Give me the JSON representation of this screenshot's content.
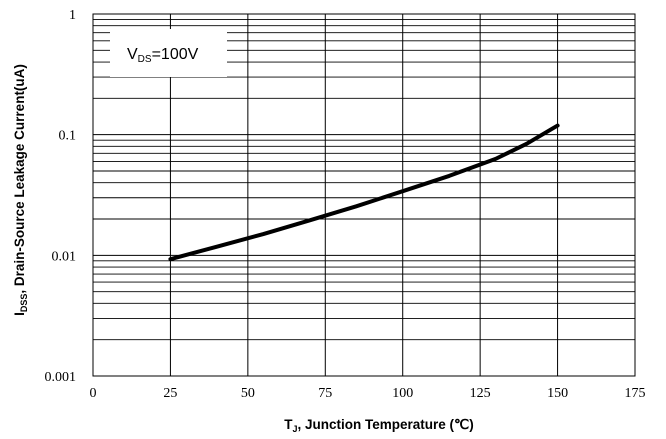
{
  "chart_data": {
    "type": "line",
    "y_scale": "log",
    "xlim": [
      0,
      175
    ],
    "ylim": [
      0.001,
      1
    ],
    "x_ticks": [
      0,
      25,
      50,
      75,
      100,
      125,
      150,
      175
    ],
    "x_tick_labels": [
      "0",
      "25",
      "50",
      "75",
      "100",
      "125",
      "150",
      "175"
    ],
    "y_ticks": [
      0.001,
      0.01,
      0.1,
      1
    ],
    "y_tick_labels": [
      "0.001",
      "0.01",
      "0.1",
      "1"
    ],
    "xlabel": {
      "main": "T",
      "sub": "J",
      "rest": ", Junction Temperature (℃)"
    },
    "ylabel": {
      "main": "I",
      "sub": "DSS",
      "rest": ", Drain-Source Leakage Current(uA)"
    },
    "annotation": {
      "main": "V",
      "sub": "DS",
      "rest": "=100V"
    },
    "grid": true,
    "series": [
      {
        "x": [
          25,
          40,
          55,
          70,
          85,
          100,
          115,
          130,
          140,
          150
        ],
        "y": [
          0.0093,
          0.0118,
          0.015,
          0.0195,
          0.0255,
          0.034,
          0.0455,
          0.063,
          0.084,
          0.119
        ],
        "color": "#000000"
      }
    ]
  }
}
